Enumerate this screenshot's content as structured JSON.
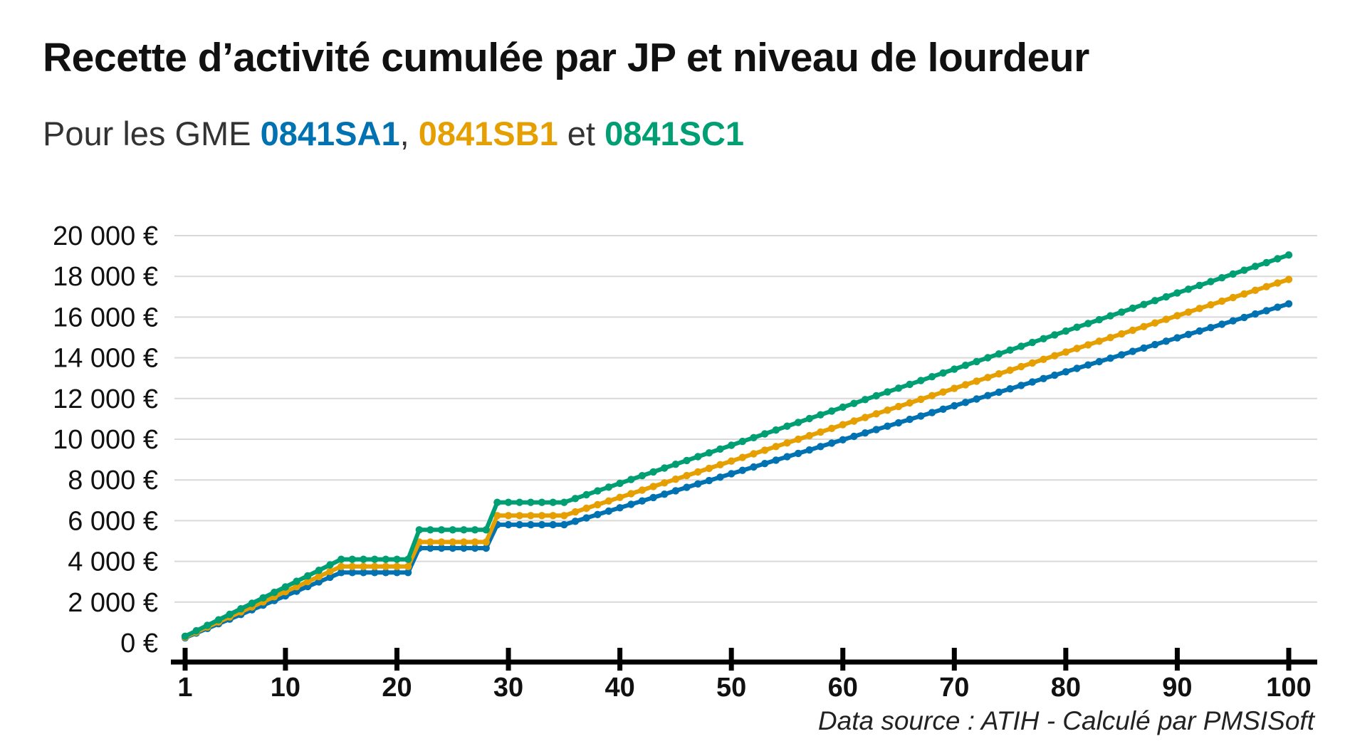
{
  "chart_data": {
    "type": "line",
    "title": "Recette d’activité cumulée par JP et niveau de lourdeur",
    "subtitle": {
      "prefix": "Pour les GME",
      "series_1": "0841SA1",
      "separator": ",",
      "series_2": "0841SB1",
      "conjunction": "et",
      "series_3": "0841SC1"
    },
    "source": "Data source : ATIH - Calculé par PMSISoft",
    "xlabel": "",
    "ylabel": "",
    "xlim": [
      1,
      100
    ],
    "ylim": [
      0,
      20000
    ],
    "x_ticks": [
      1,
      10,
      20,
      30,
      40,
      50,
      60,
      70,
      80,
      90,
      100
    ],
    "y_ticks": [
      0,
      2000,
      4000,
      6000,
      8000,
      10000,
      12000,
      14000,
      16000,
      18000,
      20000
    ],
    "y_tick_labels": [
      "0 €",
      "2 000 €",
      "4 000 €",
      "6 000 €",
      "8 000 €",
      "10 000 €",
      "12 000 €",
      "14 000 €",
      "16 000 €",
      "18 000 €",
      "20 000 €"
    ],
    "grid": "horizontal",
    "legend": "none",
    "series": [
      {
        "name": "0841SA1",
        "color": "#0072b2",
        "knots": [
          [
            1,
            250
          ],
          [
            15,
            3450
          ],
          [
            21,
            3450
          ],
          [
            22,
            4650
          ],
          [
            28,
            4650
          ],
          [
            29,
            5800
          ],
          [
            35,
            5800
          ],
          [
            100,
            16650
          ]
        ]
      },
      {
        "name": "0841SB1",
        "color": "#e69f00",
        "knots": [
          [
            1,
            280
          ],
          [
            15,
            3750
          ],
          [
            21,
            3750
          ],
          [
            22,
            4950
          ],
          [
            28,
            4950
          ],
          [
            29,
            6250
          ],
          [
            35,
            6250
          ],
          [
            100,
            17850
          ]
        ]
      },
      {
        "name": "0841SC1",
        "color": "#009e73",
        "knots": [
          [
            1,
            320
          ],
          [
            15,
            4100
          ],
          [
            21,
            4100
          ],
          [
            22,
            5550
          ],
          [
            28,
            5550
          ],
          [
            29,
            6900
          ],
          [
            35,
            6900
          ],
          [
            100,
            19050
          ]
        ]
      }
    ]
  }
}
